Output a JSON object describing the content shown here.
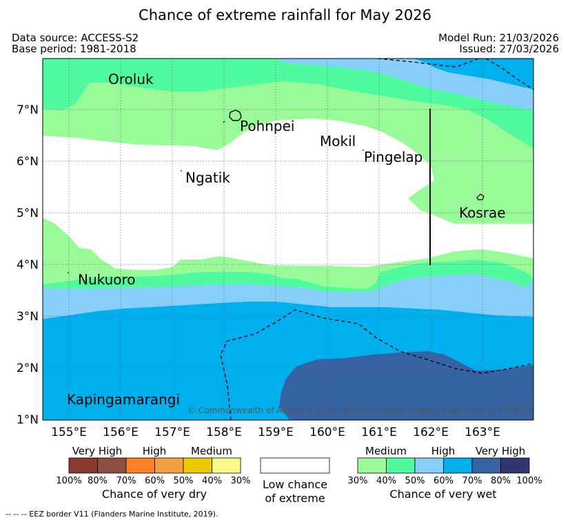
{
  "title": "Chance of extreme rainfall for May 2026",
  "meta": {
    "data_source": "Data source: ACCESS-S2",
    "base_period": "Base period: 1981-2018",
    "model_run": "Model Run: 21/03/2026",
    "issued": "Issued: 27/03/2026"
  },
  "map": {
    "lat_ticks": [
      "7°N",
      "6°N",
      "5°N",
      "4°N",
      "3°N",
      "2°N",
      "1°N"
    ],
    "lon_ticks": [
      "155°E",
      "156°E",
      "157°E",
      "158°E",
      "159°E",
      "160°E",
      "161°E",
      "162°E",
      "163°E"
    ],
    "places": {
      "oroluk": "Oroluk",
      "pohnpei": "Pohnpei",
      "mokil": "Mokil",
      "pingelap": "Pingelap",
      "ngatik": "Ngatik",
      "kosrae": "Kosrae",
      "nukuoro": "Nukuoro",
      "kapingamarangi": "Kapingamarangi"
    },
    "copyright": "© Commonwealth of Australia 2026, Bureau of Meteorology, supported by COSPPac",
    "colors": {
      "wet_medium_30": "#98fb98",
      "wet_medium_40": "#50fa9e",
      "wet_high_50": "#87cefa",
      "wet_high_60": "#00b0ee",
      "wet_veryhigh_70": "#3462a2",
      "wet_veryhigh_80": "#2e3670"
    }
  },
  "legend": {
    "dry": {
      "labels": {
        "very_high": "Very High",
        "high": "High",
        "medium": "Medium"
      },
      "percents": [
        "100%",
        "80%",
        "70%",
        "60%",
        "50%",
        "40%",
        "30%"
      ],
      "colors": [
        "#8b3a2e",
        "#8b5040",
        "#fe8225",
        "#f0a040",
        "#edc900",
        "#fefb8a"
      ],
      "caption": "Chance of very dry"
    },
    "neutral": {
      "line1": "Low chance",
      "line2": "of extreme"
    },
    "wet": {
      "labels": {
        "medium": "Medium",
        "high": "High",
        "very_high": "Very High"
      },
      "percents": [
        "30%",
        "40%",
        "50%",
        "60%",
        "70%",
        "80%",
        "100%"
      ],
      "colors": [
        "#98fb98",
        "#50fa9e",
        "#87cefa",
        "#00b0ee",
        "#3462a2",
        "#2e3670"
      ],
      "caption": "Chance of very wet"
    }
  },
  "footnote": "-- -- -- EEZ border V11 (Flanders Marine Institute, 2019)."
}
